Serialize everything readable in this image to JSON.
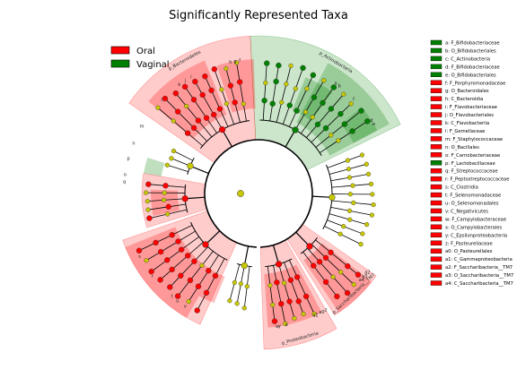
{
  "chart_data": {
    "type": "cladogram",
    "title": "Significantly Represented Taxa",
    "colors": {
      "Oral": "#ff0000",
      "Vaginal": "#008000",
      "Oral_shade": "#ff0000",
      "Vaginal_shade": "#008000",
      "neutral_node": "#c8c800",
      "branch": "#000000"
    },
    "legend": {
      "placement": "top-left",
      "entries": [
        {
          "label": "Oral",
          "group": "Oral"
        },
        {
          "label": "Vaginal",
          "group": "Vaginal"
        }
      ]
    },
    "taxa_key": [
      {
        "text": "a: F_Bifidobacteriaceae",
        "group": "Vaginal"
      },
      {
        "text": "b: O_Bifidobacteriales",
        "group": "Vaginal"
      },
      {
        "text": "c: C_Actinobacteria",
        "group": "Vaginal"
      },
      {
        "text": "d: F_Bifidobacteriaceae",
        "group": "Vaginal"
      },
      {
        "text": "e: O_Bifidobacteriales",
        "group": "Vaginal"
      },
      {
        "text": "f: F_Porphyromonadaceae",
        "group": "Oral"
      },
      {
        "text": "g: O_Bacteroidales",
        "group": "Oral"
      },
      {
        "text": "h: C_Bacteroidia",
        "group": "Oral"
      },
      {
        "text": "i: F_Flavobacteriaceae",
        "group": "Oral"
      },
      {
        "text": "j: O_Flavobacteriales",
        "group": "Oral"
      },
      {
        "text": "k: C_Flavobacteriia",
        "group": "Oral"
      },
      {
        "text": "l: F_Gemellaceae",
        "group": "Oral"
      },
      {
        "text": "m: F_Staphylococcaceae",
        "group": "Oral"
      },
      {
        "text": "n: O_Bacillales",
        "group": "Oral"
      },
      {
        "text": "o: F_Carnobacteriaceae",
        "group": "Oral"
      },
      {
        "text": "p: F_Lactobacillaceae",
        "group": "Vaginal"
      },
      {
        "text": "q: F_Streptococcaceae",
        "group": "Oral"
      },
      {
        "text": "r: F_Peptostreptococcaceae",
        "group": "Oral"
      },
      {
        "text": "s: C_Clostridia",
        "group": "Oral"
      },
      {
        "text": "t: F_Selenomonadaceae",
        "group": "Oral"
      },
      {
        "text": "u: O_Selenomonadales",
        "group": "Oral"
      },
      {
        "text": "v: C_Negativicutes",
        "group": "Oral"
      },
      {
        "text": "w: F_Campylobacteraceae",
        "group": "Oral"
      },
      {
        "text": "x: O_Campylobacterales",
        "group": "Oral"
      },
      {
        "text": "y: C_Epsilonproteobacteria",
        "group": "Oral"
      },
      {
        "text": "z: F_Pasteurellaceae",
        "group": "Oral"
      },
      {
        "text": "a0: O_Pasteurellales",
        "group": "Oral"
      },
      {
        "text": "a1: C_Gammaproteobacteria",
        "group": "Oral"
      },
      {
        "text": "a2: F_Saccharibacteria__TM7",
        "group": "Oral"
      },
      {
        "text": "a3: O_Saccharibacteria__TM7",
        "group": "Oral"
      },
      {
        "text": "a4: C_Saccharibacteria__TM7",
        "group": "Oral"
      }
    ],
    "phyla": [
      {
        "label": "p_Actinobacteria",
        "group": "Vaginal",
        "start": -3,
        "end": 64
      },
      {
        "label": "p_Bacteroidetes",
        "group": "Oral",
        "start": -55,
        "end": -3
      },
      {
        "label": "p_Saccharibacteria__TM7",
        "group": "Oral",
        "start": 125,
        "end": 148
      },
      {
        "label": "p_Proteobacteria",
        "group": "Oral",
        "start": 150,
        "end": 178
      },
      {
        "label": "",
        "group": "Oral",
        "start": -107,
        "end": -80
      },
      {
        "label": "",
        "group": "Oral",
        "start": -156,
        "end": -109
      }
    ],
    "clade_labels": [
      {
        "text": "a",
        "group": "Vaginal",
        "angle": 35
      },
      {
        "text": "b",
        "group": "Vaginal",
        "angle": 37
      },
      {
        "text": "c",
        "group": "Vaginal",
        "angle": 45
      },
      {
        "text": "d",
        "group": "Vaginal",
        "angle": 57
      },
      {
        "text": "e",
        "group": "Vaginal",
        "angle": 59
      },
      {
        "text": "f",
        "group": "Oral",
        "angle": -8
      },
      {
        "text": "g",
        "group": "Oral",
        "angle": -10
      },
      {
        "text": "h",
        "group": "Oral",
        "angle": -12
      },
      {
        "text": "i",
        "group": "Oral",
        "angle": -30
      },
      {
        "text": "j",
        "group": "Oral",
        "angle": -33
      },
      {
        "text": "k",
        "group": "Oral",
        "angle": -36
      },
      {
        "text": "l",
        "group": "Oral",
        "angle": -46
      },
      {
        "text": "m",
        "group": "Oral",
        "angle": -60
      },
      {
        "text": "n",
        "group": "Oral",
        "angle": -68
      },
      {
        "text": "o",
        "group": "Oral",
        "angle": -82
      },
      {
        "text": "p",
        "group": "Vaginal",
        "angle": -75
      },
      {
        "text": "q",
        "group": "Oral",
        "angle": -85
      },
      {
        "text": "r",
        "group": "Oral",
        "angle": -128
      },
      {
        "text": "s",
        "group": "Oral",
        "angle": -118
      },
      {
        "text": "t",
        "group": "Oral",
        "angle": -140
      },
      {
        "text": "u",
        "group": "Oral",
        "angle": -143
      },
      {
        "text": "v",
        "group": "Oral",
        "angle": -147
      },
      {
        "text": "w",
        "group": "Oral",
        "angle": 172
      },
      {
        "text": "x",
        "group": "Oral",
        "angle": 168
      },
      {
        "text": "y",
        "group": "Oral",
        "angle": 171
      },
      {
        "text": "z",
        "group": "Oral",
        "angle": 150
      },
      {
        "text": "a0",
        "group": "Oral",
        "angle": 152
      },
      {
        "text": "a1",
        "group": "Oral",
        "angle": 155
      },
      {
        "text": "a2",
        "group": "Oral",
        "angle": 126
      },
      {
        "text": "a3",
        "group": "Oral",
        "angle": 128
      },
      {
        "text": "a4",
        "group": "Oral",
        "angle": 130
      }
    ]
  }
}
